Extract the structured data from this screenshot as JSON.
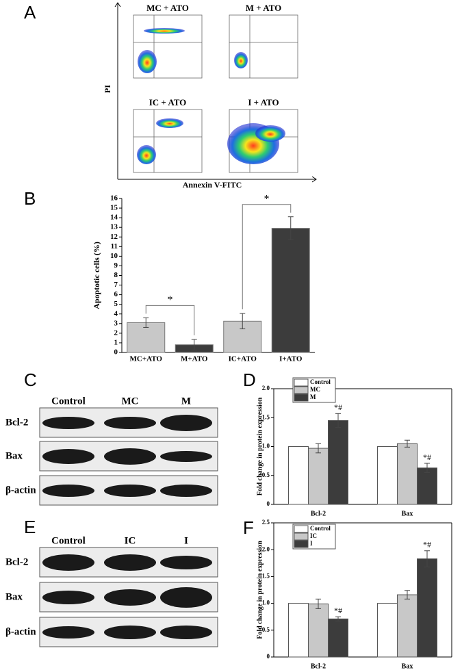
{
  "flow_panel": {
    "label": "A",
    "plots": [
      "MC + ATO",
      "M + ATO",
      "IC + ATO",
      "I + ATO"
    ],
    "x_label": "Annexin V-FITC",
    "y_label": "PI"
  },
  "blot_c": {
    "label": "C",
    "lanes": [
      "Control",
      "MC",
      "M"
    ],
    "rows": [
      "Bcl-2",
      "Bax",
      "β-actin"
    ]
  },
  "blot_e": {
    "label": "E",
    "lanes": [
      "Control",
      "IC",
      "I"
    ],
    "rows": [
      "Bcl-2",
      "Bax",
      "β-actin"
    ]
  },
  "chart_data": [
    {
      "type": "bar",
      "label": "B",
      "y_label": "Apoptotic cells (%)",
      "categories": [
        "MC+ATO",
        "M+ATO",
        "IC+ATO",
        "I+ATO"
      ],
      "values": [
        3.1,
        0.8,
        3.25,
        12.9
      ],
      "errors": [
        0.5,
        0.55,
        0.8,
        1.2
      ],
      "colors": [
        "#c8c8c8",
        "#3c3c3c",
        "#c8c8c8",
        "#3c3c3c"
      ],
      "annotations": [
        "*",
        "*"
      ],
      "ylim": [
        0,
        16
      ],
      "yticks": [
        0,
        1,
        2,
        3,
        4,
        5,
        6,
        7,
        8,
        9,
        10,
        11,
        12,
        13,
        14,
        15,
        16
      ]
    },
    {
      "type": "grouped-bar",
      "label": "D",
      "y_label": "Fold change in protein expression",
      "categories": [
        "Bcl-2",
        "Bax"
      ],
      "series": [
        {
          "name": "Control",
          "color": "#ffffff",
          "values": [
            1,
            1
          ],
          "errors": [
            0,
            0
          ]
        },
        {
          "name": "MC",
          "color": "#c8c8c8",
          "values": [
            0.97,
            1.05
          ],
          "errors": [
            0.08,
            0.06
          ]
        },
        {
          "name": "M",
          "color": "#3c3c3c",
          "values": [
            1.45,
            0.63
          ],
          "errors": [
            0.12,
            0.08
          ]
        }
      ],
      "annotations": [
        "*#",
        "*#"
      ],
      "ylim": [
        0,
        2
      ],
      "yticks": [
        0,
        0.5,
        {
          "value": 1,
          "label": "1.0"
        },
        1.5,
        {
          "value": 2,
          "label": "2.0"
        }
      ]
    },
    {
      "type": "grouped-bar",
      "label": "F",
      "y_label": "Fold change in protein expression",
      "categories": [
        "Bcl-2",
        "Bax"
      ],
      "series": [
        {
          "name": "Control",
          "color": "#ffffff",
          "values": [
            1,
            1
          ],
          "errors": [
            0,
            0
          ]
        },
        {
          "name": "IC",
          "color": "#c8c8c8",
          "values": [
            0.99,
            1.16
          ],
          "errors": [
            0.09,
            0.08
          ]
        },
        {
          "name": "I",
          "color": "#3c3c3c",
          "values": [
            0.71,
            1.83
          ],
          "errors": [
            0.04,
            0.15
          ]
        }
      ],
      "annotations": [
        "*#",
        "*#"
      ],
      "ylim": [
        0,
        2.5
      ],
      "yticks": [
        0,
        0.5,
        {
          "value": 1,
          "label": "1.0"
        },
        1.5,
        {
          "value": 2,
          "label": "2.0"
        },
        2.5
      ]
    }
  ]
}
